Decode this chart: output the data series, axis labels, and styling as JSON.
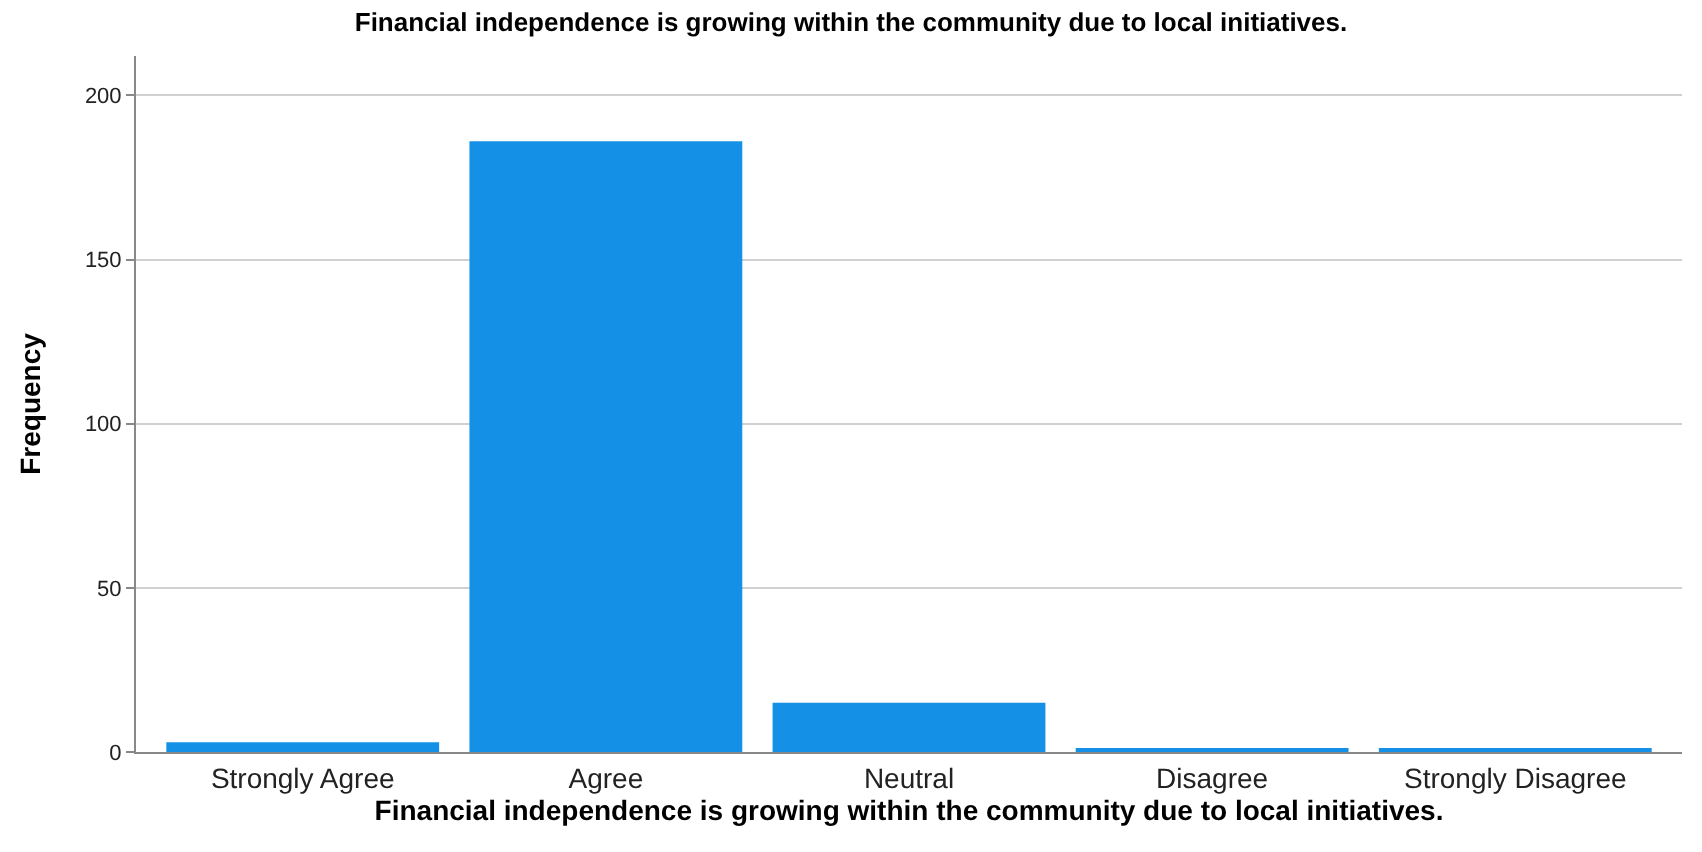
{
  "chart_data": {
    "type": "bar",
    "title": "Financial independence is growing within the community due to local initiatives.",
    "xlabel": "Financial independence is growing within the community due to local initiatives.",
    "ylabel": "Frequency",
    "categories": [
      "Strongly Agree",
      "Agree",
      "Neutral",
      "Disagree",
      "Strongly Disagree"
    ],
    "values": [
      3,
      186,
      15,
      1,
      1
    ],
    "color": "#1491e6",
    "ylim": [
      0,
      212
    ],
    "yticks": [
      0,
      50,
      100,
      150,
      200
    ],
    "grid": "y"
  }
}
